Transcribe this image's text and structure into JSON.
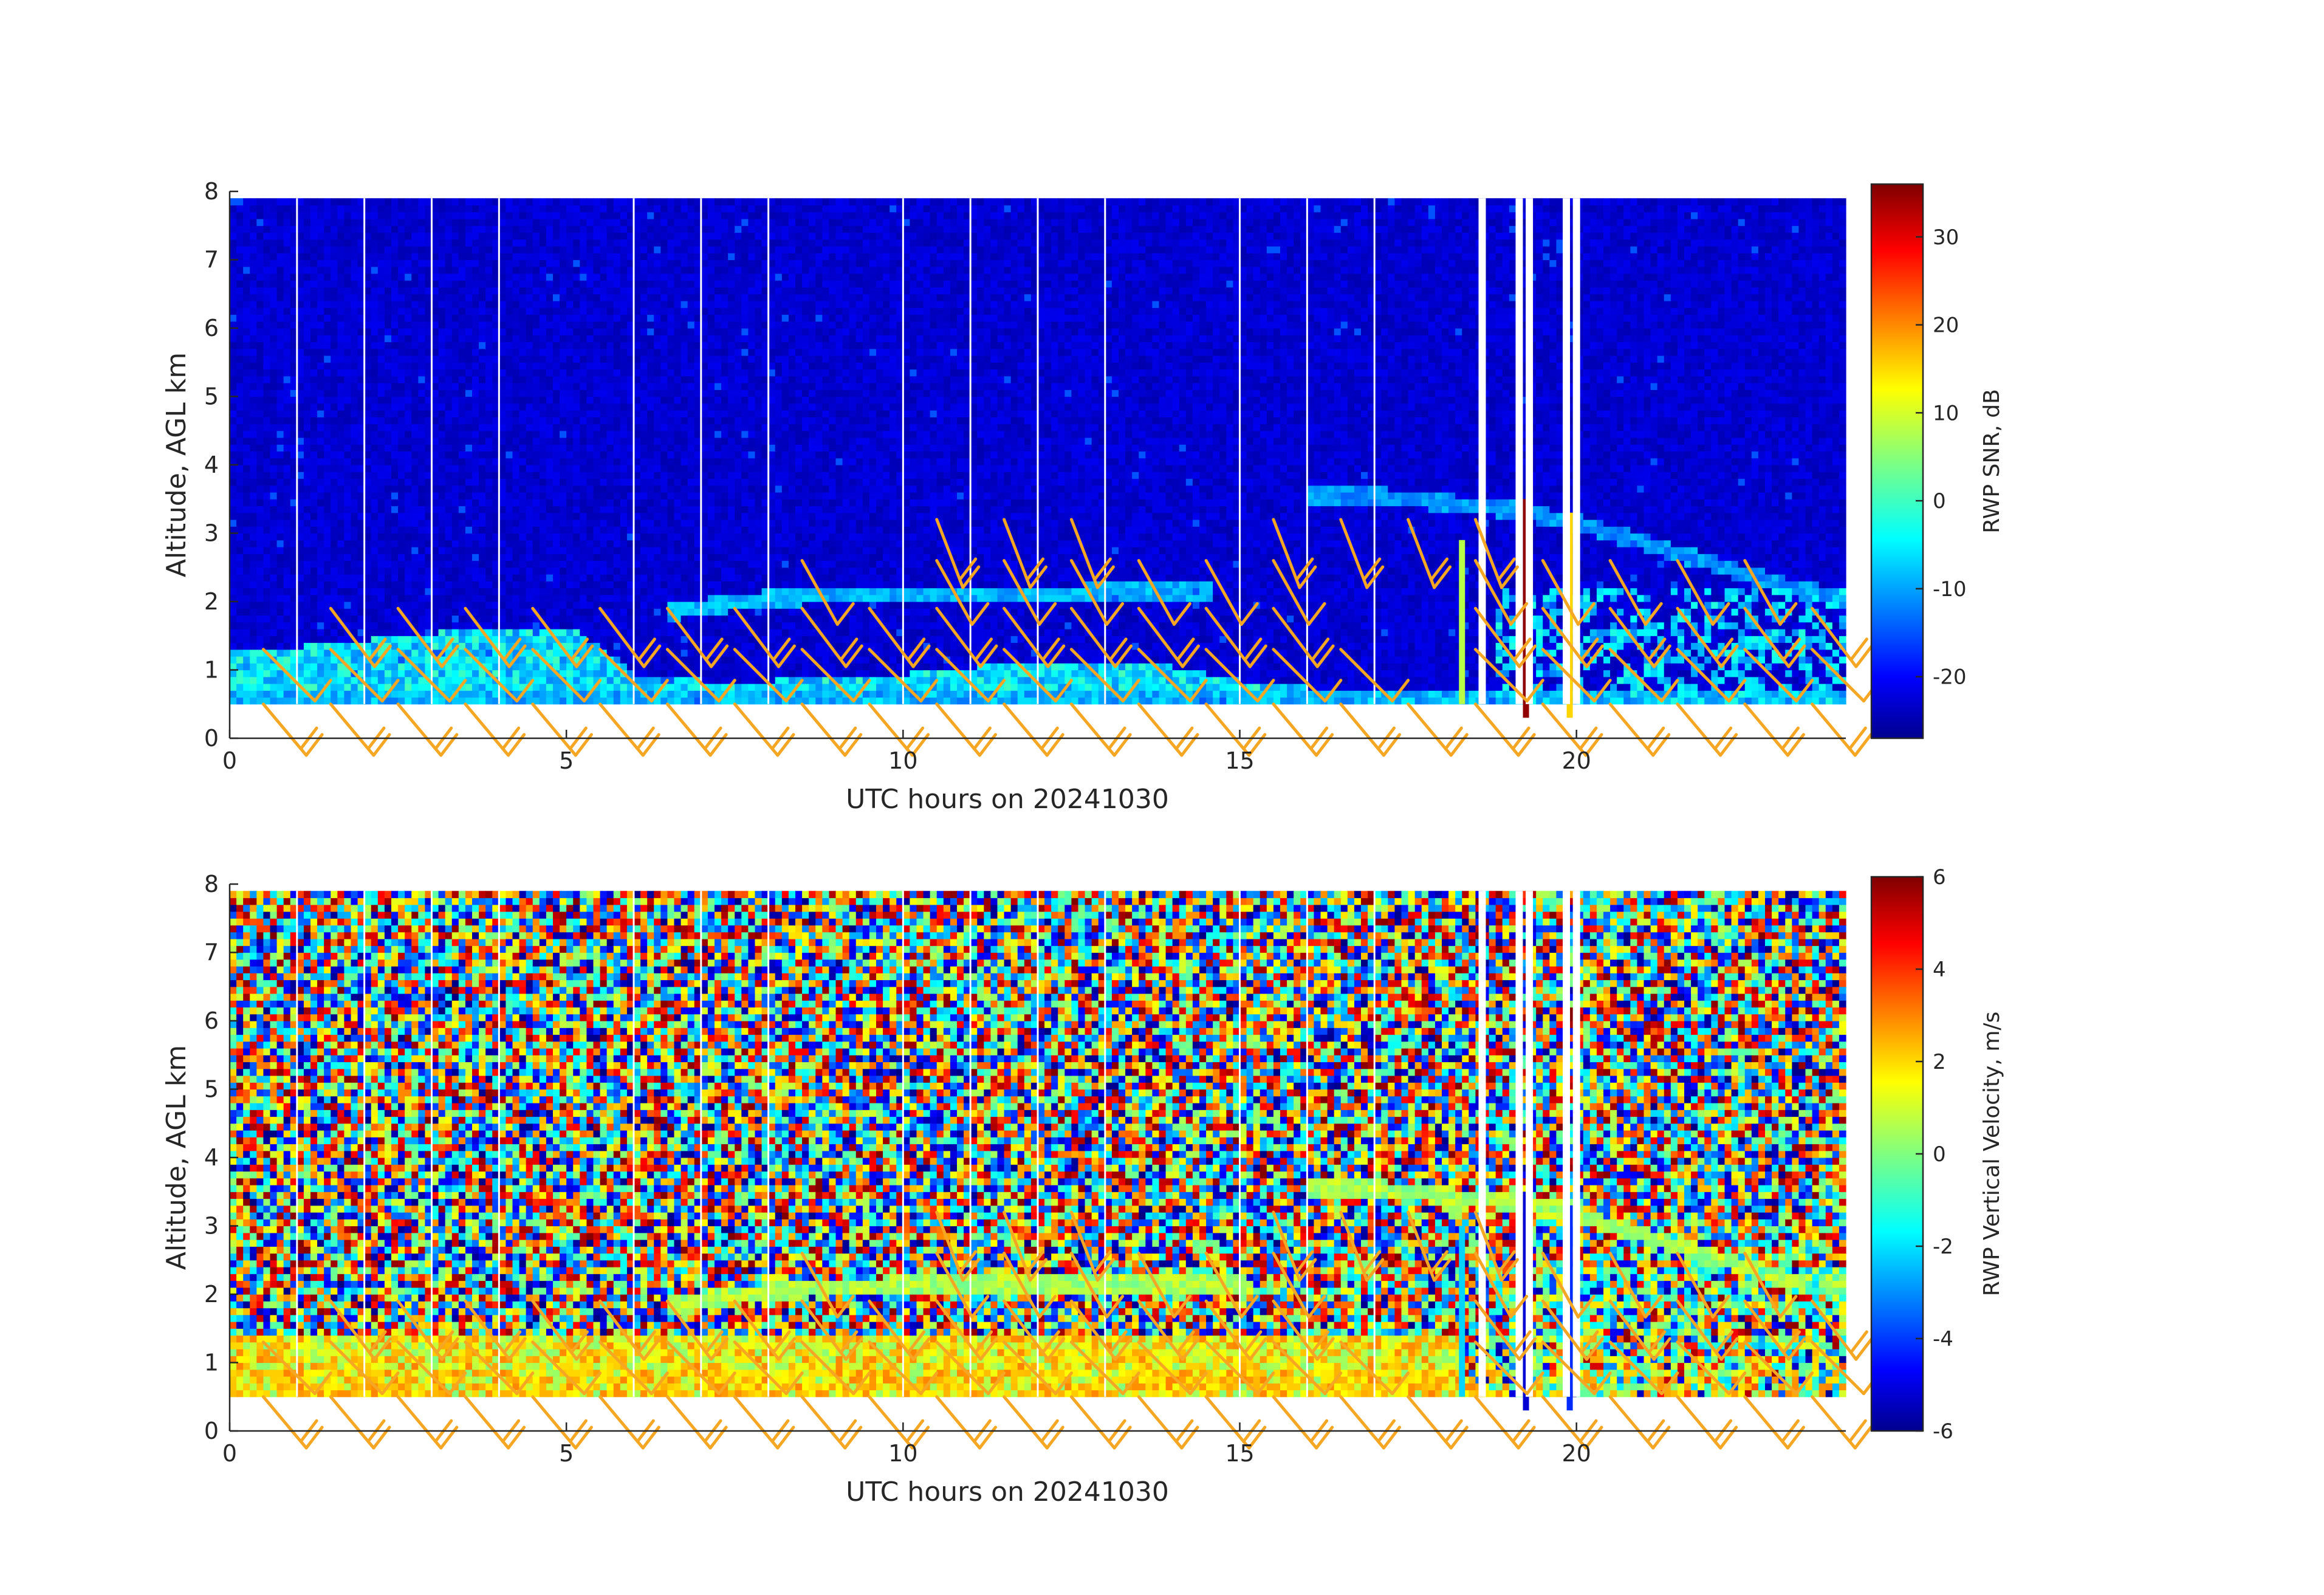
{
  "chart_data": [
    {
      "type": "heatmap",
      "title": "",
      "xlabel": "UTC hours on 20241030",
      "ylabel": "Altitude, AGL km",
      "xlim": [
        0,
        24
      ],
      "ylim": [
        0,
        8
      ],
      "x_ticks": [
        0,
        5,
        10,
        15,
        20
      ],
      "y_ticks": [
        0,
        1,
        2,
        3,
        4,
        5,
        6,
        7,
        8
      ],
      "colorbar": {
        "label": "RWP SNR, dB",
        "range": [
          -27,
          36
        ],
        "ticks": [
          30,
          20,
          10,
          0,
          -10,
          -20
        ],
        "colormap": "jet"
      },
      "data_top_km": 7.9,
      "data_bottom_km": 0.5,
      "background_value": -22,
      "layers": [
        {
          "name": "boundary layer",
          "x": [
            0,
            1,
            2,
            3,
            4,
            5,
            6,
            7,
            8,
            9,
            10,
            11,
            12,
            13,
            14,
            15,
            16,
            17,
            18
          ],
          "top_km": [
            1.3,
            1.3,
            1.4,
            1.5,
            1.6,
            1.6,
            0.9,
            0.8,
            0.8,
            0.9,
            0.9,
            1.0,
            1.1,
            1.1,
            1.0,
            0.8,
            0.7,
            0.7,
            0.7
          ],
          "value": -5
        },
        {
          "name": "elevated layer",
          "x": [
            6.5,
            8,
            9,
            10,
            11,
            12,
            13,
            14,
            14.5
          ],
          "alt_km": [
            1.8,
            2.0,
            2.05,
            2.05,
            2.05,
            2.05,
            2.1,
            2.1,
            2.1
          ],
          "value": -8
        },
        {
          "name": "upper layer",
          "x": [
            16,
            17,
            18,
            19,
            20,
            21,
            22,
            23,
            24
          ],
          "alt_km": [
            3.5,
            3.5,
            3.4,
            3.3,
            3.1,
            2.8,
            2.5,
            2.2,
            2.0
          ],
          "value": -10
        }
      ],
      "spikes": [
        {
          "x": 18.3,
          "bottom_km": 0.5,
          "top_km": 2.9,
          "value": 8
        },
        {
          "x": 19.25,
          "bottom_km": 0.3,
          "top_km": 3.5,
          "value": 35
        },
        {
          "x": 19.9,
          "bottom_km": 0.3,
          "top_km": 3.3,
          "value": 15
        }
      ],
      "gaps_x": [
        18.6,
        19.15,
        19.3,
        19.85,
        20.0
      ],
      "vertical_lines_x": [
        1,
        2,
        3,
        4,
        6,
        7,
        8,
        10,
        11,
        12,
        13,
        15,
        16,
        17
      ]
    },
    {
      "type": "heatmap",
      "title": "",
      "xlabel": "UTC hours on 20241030",
      "ylabel": "Altitude, AGL km",
      "xlim": [
        0,
        24
      ],
      "ylim": [
        0,
        8
      ],
      "x_ticks": [
        0,
        5,
        10,
        15,
        20
      ],
      "y_ticks": [
        0,
        1,
        2,
        3,
        4,
        5,
        6,
        7,
        8
      ],
      "colorbar": {
        "label": "RWP Vertical Velocity, m/s",
        "range": [
          -6,
          6
        ],
        "ticks": [
          6,
          4,
          2,
          0,
          -2,
          -4,
          -6
        ],
        "colormap": "jet"
      },
      "data_top_km": 7.9,
      "data_bottom_km": 0.5,
      "noise": "random values spanning -6 to 6 above the boundary layer",
      "low_layer_top_km": 1.4,
      "low_layer_range": [
        0,
        3
      ],
      "layers": [
        {
          "name": "elevated layer",
          "x": [
            6.5,
            8,
            10,
            12,
            14,
            15
          ],
          "alt_km": [
            1.8,
            2.0,
            2.1,
            2.1,
            2.1,
            2.1
          ],
          "value": 0.5
        },
        {
          "name": "upper layer",
          "x": [
            16,
            17,
            18,
            19,
            20,
            21,
            22,
            23,
            24
          ],
          "alt_km": [
            3.5,
            3.5,
            3.4,
            3.3,
            3.1,
            2.8,
            2.5,
            2.2,
            2.0
          ],
          "value": 0.5
        }
      ],
      "spikes": [
        {
          "x": 18.3,
          "bottom_km": 0.5,
          "top_km": 3.0,
          "value": -2
        },
        {
          "x": 19.25,
          "bottom_km": 0.3,
          "top_km": 3.5,
          "value": -5
        },
        {
          "x": 19.9,
          "bottom_km": 0.3,
          "top_km": 3.3,
          "value": -4
        }
      ],
      "gaps_x": [
        18.6,
        19.15,
        19.3,
        19.85,
        20.0
      ],
      "vertical_lines_x": [
        1,
        2,
        3,
        4,
        6,
        7,
        8,
        10,
        11,
        12,
        13,
        15,
        16,
        17
      ]
    }
  ],
  "wind_barbs": {
    "color": "#f5a623",
    "times_h": [
      0.5,
      1.5,
      2.5,
      3.5,
      4.5,
      5.5,
      6.5,
      7.5,
      8.5,
      9.5,
      10.5,
      11.5,
      12.5,
      13.5,
      14.5,
      15.5,
      16.5,
      17.5,
      18.5,
      19.5,
      20.5,
      21.5,
      22.5,
      23.5
    ],
    "surface_alt_km": 0.5,
    "levels": [
      {
        "alt_km": 1.3,
        "times_h": [
          0.5,
          1.5,
          2.5,
          3.5,
          4.5,
          5.5,
          6.5,
          7.5,
          8.5,
          9.5,
          10.5,
          11.5,
          12.5,
          13.5,
          14.5,
          15.5,
          16.5,
          18.5,
          19.5,
          20.5,
          21.5,
          22.5,
          23.5
        ]
      },
      {
        "alt_km": 1.9,
        "times_h": [
          1.5,
          2.5,
          3.5,
          4.5,
          5.5,
          6.5,
          7.5,
          8.5,
          9.5,
          10.5,
          11.5,
          12.5,
          13.5,
          14.5,
          15.5,
          18.5,
          19.5,
          20.5,
          21.5,
          22.5,
          23.5
        ]
      },
      {
        "alt_km": 2.6,
        "times_h": [
          8.5,
          10.5,
          11.5,
          12.5,
          13.5,
          14.5,
          15.5,
          18.5,
          19.5,
          20.5,
          21.5,
          22.5
        ]
      },
      {
        "alt_km": 3.2,
        "times_h": [
          10.5,
          11.5,
          12.5,
          15.5,
          16.5,
          17.5,
          18.5
        ]
      }
    ]
  }
}
